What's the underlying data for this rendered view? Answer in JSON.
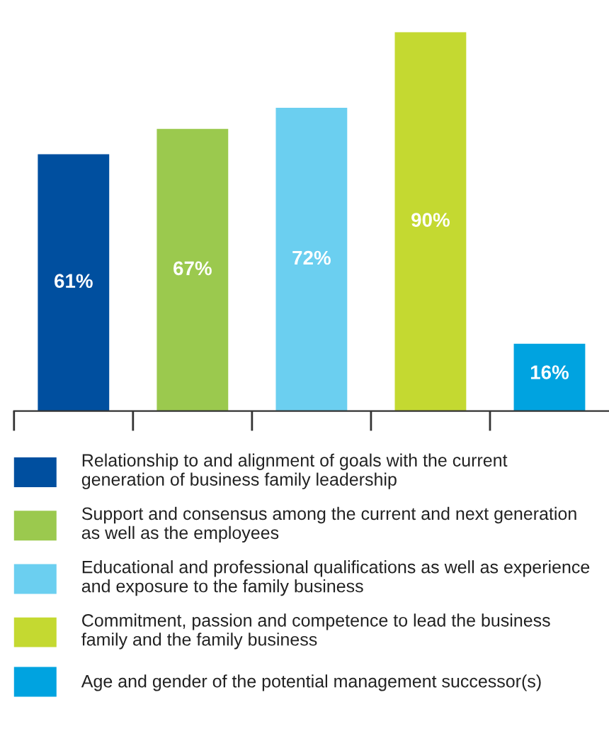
{
  "chart_data": {
    "type": "bar",
    "categories": [
      null,
      null,
      null,
      null,
      null
    ],
    "series": [
      {
        "name": "Relationship to and alignment of goals with the current generation of business family leadership",
        "color": "#004f9f",
        "values": [
          61,
          null,
          null,
          null,
          null
        ],
        "value_labels": [
          "61%",
          null,
          null,
          null,
          null
        ]
      },
      {
        "name": "Support and consensus among the current and next generation as well as the employees",
        "color": "#9bc94e",
        "values": [
          null,
          67,
          null,
          null,
          null
        ],
        "value_labels": [
          null,
          "67%",
          null,
          null,
          null
        ]
      },
      {
        "name": "Educational and professional qualifications as well as experience and exposure to the family business",
        "color": "#6bcff0",
        "values": [
          null,
          null,
          72,
          null,
          null
        ],
        "value_labels": [
          null,
          null,
          "72%",
          null,
          null
        ]
      },
      {
        "name": "Commitment, passion and competence to lead the business family and the family business",
        "color": "#c4d931",
        "values": [
          null,
          null,
          null,
          90,
          null
        ],
        "value_labels": [
          null,
          null,
          null,
          "90%",
          null
        ]
      },
      {
        "name": "Age and gender of the potential management successor(s)",
        "color": "#00a3e0",
        "values": [
          null,
          null,
          null,
          null,
          16
        ],
        "value_labels": [
          null,
          null,
          null,
          null,
          "16%"
        ]
      }
    ],
    "stacked": true,
    "legend": "bottom",
    "grid": false
  }
}
